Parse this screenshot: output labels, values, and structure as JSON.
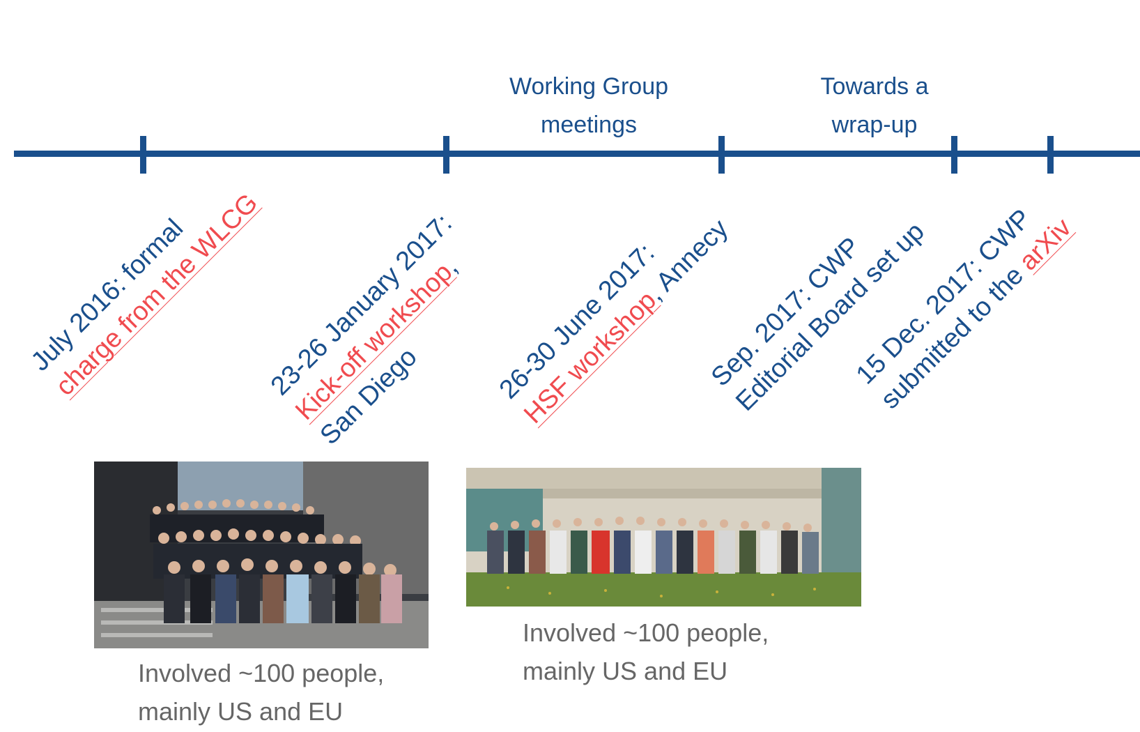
{
  "phases": {
    "working_group": [
      "Working Group",
      "meetings"
    ],
    "wrap_up": [
      "Towards a",
      "wrap-up"
    ]
  },
  "events": [
    {
      "line1": "July 2016: formal",
      "line2_highlight": "charge from the WLCG",
      "line2_rest": "",
      "line3": ""
    },
    {
      "line1": "23-26 January 2017:",
      "line2_highlight": "Kick-off workshop",
      "line2_rest": ",",
      "line3": "San Diego"
    },
    {
      "line1": "26-30 June 2017:",
      "line2_highlight": "HSF workshop",
      "line2_rest": ", Annecy",
      "line3": ""
    },
    {
      "line1": "Sep. 2017: CWP",
      "line2_highlight": "",
      "line2_rest": "Editorial Board set up",
      "line3": ""
    },
    {
      "line1": "15 Dec. 2017: CWP",
      "line2_highlight": "",
      "line2_rest": "submitted to the ",
      "line2_highlight_end": "arXiv",
      "line3": ""
    }
  ],
  "captions": {
    "san_diego": [
      "Involved ~100 people,",
      "mainly US and EU"
    ],
    "annecy": [
      "Involved ~100 people,",
      "mainly US and EU"
    ]
  },
  "colors": {
    "primary": "#1a4f8c",
    "highlight": "#f04b4f",
    "caption": "#666666"
  }
}
